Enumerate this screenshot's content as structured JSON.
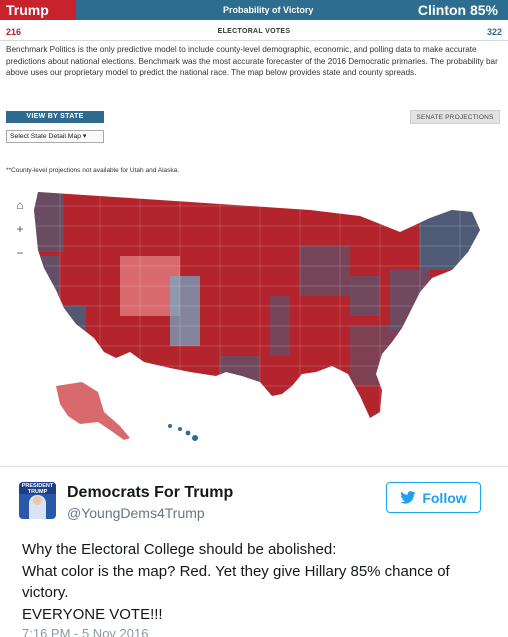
{
  "probability": {
    "trump_label": "Trump 15%",
    "clinton_label": "Clinton 85%",
    "title": "Probability of Victory",
    "trump_share": 0.15
  },
  "electoral": {
    "trump_votes": "216",
    "label": "ELECTORAL VOTES",
    "clinton_votes": "322"
  },
  "description": "Benchmark Politics is the only predictive model to include county-level demographic, economic, and polling data to make accurate predictions about national elections. Benchmark was the most accurate forecaster of the 2016 Democratic primaries. The probability bar above uses our proprietary model to predict the national race. The map below provides state and county spreads.",
  "controls": {
    "view_by_state": "VIEW BY STATE",
    "senate": "SENATE PROJECTIONS",
    "select_state": "Select State Detail Map",
    "select_arrow": "▾"
  },
  "footnote": "**County-level projections not available for Utah and Alaska.",
  "map_controls": {
    "home": "⌂",
    "zoom_in": "+",
    "zoom_out": "−"
  },
  "colors": {
    "red": "#b3242c",
    "light_red": "#d86a6e",
    "blue": "#2d6d8f",
    "light_blue": "#6faccb"
  },
  "tweet": {
    "avatar_text": "PRESIDENT TRUMP",
    "name": "Democrats For Trump",
    "handle": "@YoungDems4Trump",
    "follow_label": "Follow",
    "line1": "Why the Electoral College should be abolished:",
    "line2": "What color is the map? Red. Yet they give Hillary 85% chance of victory.",
    "line3": "EVERYONE VOTE!!!",
    "timestamp": "7:16 PM - 5 Nov 2016"
  }
}
